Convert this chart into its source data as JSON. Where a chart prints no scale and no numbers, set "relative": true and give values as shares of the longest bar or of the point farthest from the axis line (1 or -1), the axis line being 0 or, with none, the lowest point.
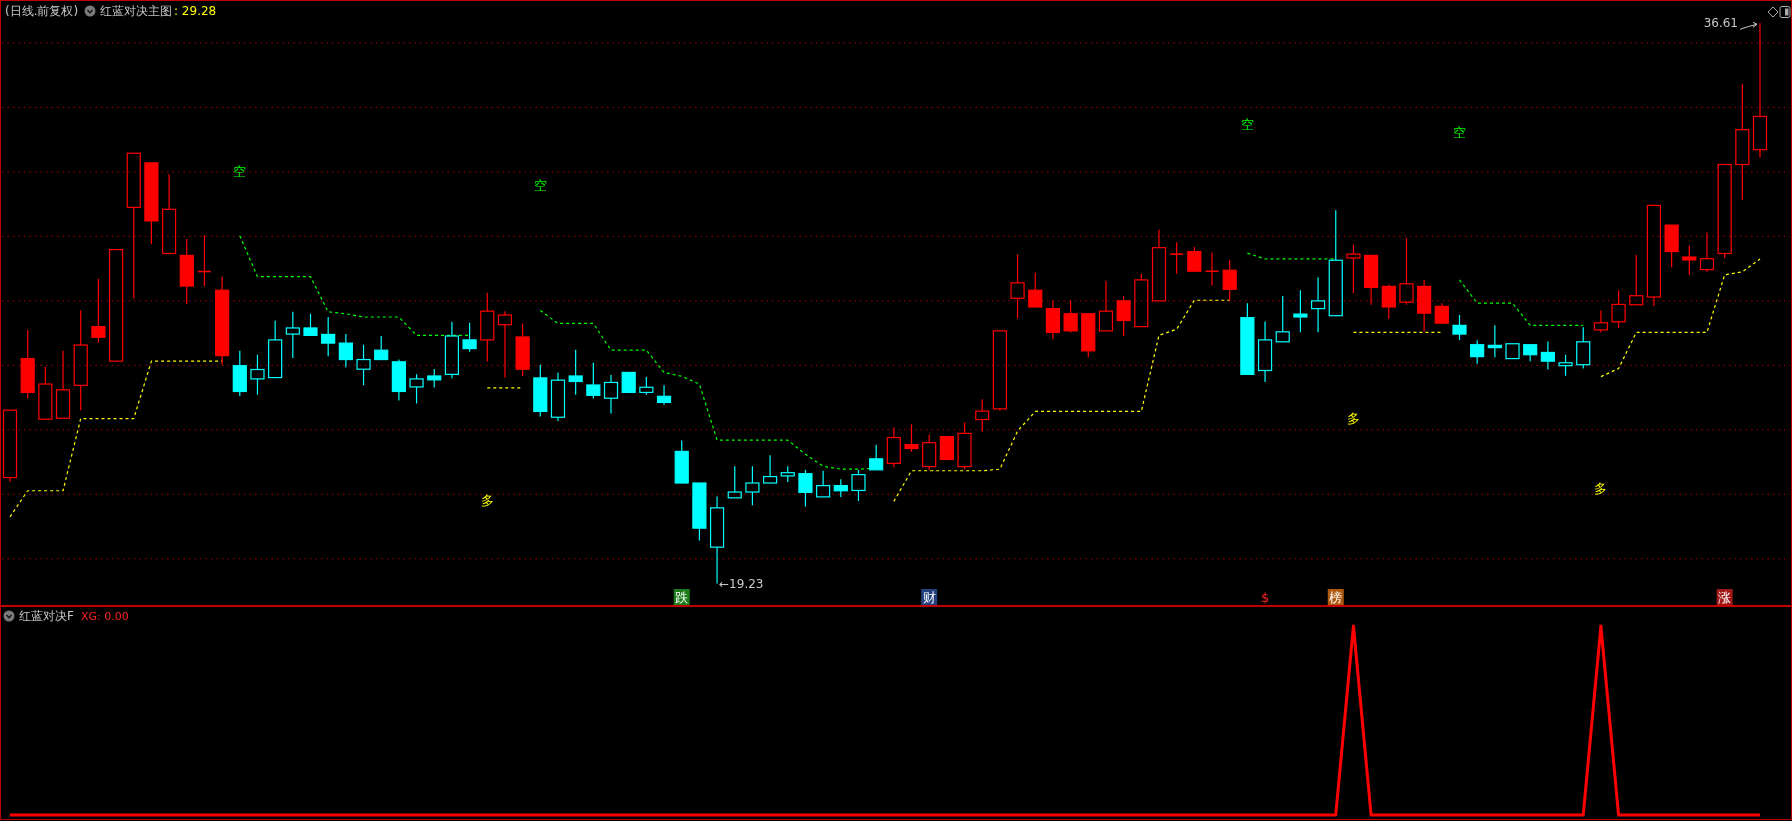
{
  "chart_data": [
    {
      "type": "candlestick",
      "title": "(日线.前复权)",
      "subtitle": "红蓝对决主图",
      "annotations": [
        ": 29.28",
        "←19.23",
        "36.61",
        "空",
        "空",
        "空",
        "空",
        "多",
        "多",
        "多",
        "跌",
        "财",
        "$",
        "榜",
        "涨"
      ],
      "categories": [
        null,
        null,
        null,
        null,
        null,
        null,
        null,
        null,
        null,
        null,
        null,
        null,
        null,
        null,
        null,
        null,
        null,
        null,
        null,
        null,
        null,
        null,
        null,
        null,
        null,
        null,
        null,
        null,
        null,
        null,
        null,
        null,
        null,
        null,
        null,
        null,
        null,
        null,
        null,
        null,
        null,
        null,
        null,
        null,
        null,
        null,
        null,
        null,
        null,
        null,
        null,
        null,
        null,
        null,
        null,
        null,
        null,
        null,
        null,
        null,
        null,
        null,
        null,
        null,
        null,
        null,
        null,
        null,
        null,
        null,
        null,
        null,
        null,
        null,
        null,
        null,
        null,
        null,
        null,
        null,
        null,
        null,
        null,
        null,
        null,
        null,
        null,
        null,
        null,
        null,
        null,
        null,
        null,
        null,
        null,
        null,
        null,
        null,
        null,
        null
      ],
      "ohlc": [
        [
          22.52,
          24.61,
          22.39,
          24.61
        ],
        [
          26.21,
          27.1,
          24.97,
          25.16
        ],
        [
          24.33,
          25.96,
          24.33,
          25.42
        ],
        [
          24.36,
          26.45,
          24.36,
          25.24
        ],
        [
          25.38,
          27.7,
          24.61,
          26.63
        ],
        [
          27.2,
          28.69,
          26.69,
          26.87
        ],
        [
          26.13,
          29.59,
          26.13,
          29.59
        ],
        [
          30.9,
          32.58,
          28.08,
          32.58
        ],
        [
          32.28,
          32.28,
          29.76,
          30.48
        ],
        [
          29.47,
          31.93,
          29.47,
          30.84
        ],
        [
          29.41,
          29.92,
          27.9,
          28.46
        ],
        [
          28.91,
          30.04,
          28.45,
          28.91
        ],
        [
          28.33,
          28.75,
          26.02,
          26.3
        ],
        [
          25.99,
          26.45,
          25.05,
          25.19
        ],
        [
          25.58,
          26.33,
          25.09,
          25.87
        ],
        [
          25.62,
          27.38,
          25.62,
          26.79
        ],
        [
          26.97,
          27.66,
          26.23,
          27.16
        ],
        [
          27.16,
          27.6,
          26.91,
          26.93
        ],
        [
          26.96,
          27.5,
          26.28,
          26.69
        ],
        [
          26.69,
          26.97,
          25.94,
          26.18
        ],
        [
          25.88,
          26.64,
          25.38,
          26.18
        ],
        [
          26.47,
          26.91,
          26.16,
          26.18
        ],
        [
          26.11,
          26.18,
          24.91,
          25.19
        ],
        [
          25.33,
          25.72,
          24.82,
          25.58
        ],
        [
          25.67,
          25.89,
          25.31,
          25.55
        ],
        [
          25.72,
          27.35,
          25.6,
          26.91
        ],
        [
          26.79,
          27.32,
          26.42,
          26.52
        ],
        [
          26.79,
          28.25,
          26.12,
          27.68
        ],
        [
          27.26,
          27.68,
          25.62,
          27.56
        ],
        [
          26.88,
          27.3,
          25.66,
          25.88
        ],
        [
          25.61,
          26.02,
          24.41,
          24.57
        ],
        [
          24.39,
          25.78,
          24.27,
          25.54
        ],
        [
          25.67,
          26.48,
          25.09,
          25.5
        ],
        [
          25.39,
          26.08,
          24.97,
          25.07
        ],
        [
          24.98,
          25.7,
          24.51,
          25.47
        ],
        [
          25.78,
          25.78,
          25.16,
          25.16
        ],
        [
          25.16,
          25.64,
          25.09,
          25.32
        ],
        [
          25.04,
          25.38,
          24.78,
          24.85
        ],
        [
          23.33,
          23.67,
          22.35,
          22.35
        ],
        [
          22.35,
          22.35,
          20.57,
          20.95
        ],
        [
          20.36,
          21.93,
          19.23,
          21.58
        ],
        [
          21.89,
          22.87,
          21.89,
          22.07
        ],
        [
          22.07,
          22.87,
          21.66,
          22.35
        ],
        [
          22.35,
          23.21,
          22.35,
          22.55
        ],
        [
          22.57,
          22.87,
          22.38,
          22.67
        ],
        [
          22.64,
          22.76,
          21.62,
          22.06
        ],
        [
          21.92,
          22.73,
          21.92,
          22.27
        ],
        [
          22.27,
          22.47,
          21.92,
          22.11
        ],
        [
          22.12,
          22.75,
          21.79,
          22.61
        ],
        [
          23.1,
          23.54,
          22.76,
          22.76
        ],
        [
          22.96,
          24.07,
          22.84,
          23.76
        ],
        [
          23.54,
          24.17,
          23.32,
          23.42
        ],
        [
          22.86,
          23.85,
          22.75,
          23.6
        ],
        [
          23.79,
          23.82,
          23.08,
          23.08
        ],
        [
          22.86,
          24.23,
          22.78,
          23.89
        ],
        [
          24.32,
          24.95,
          23.95,
          24.58
        ],
        [
          24.65,
          27.07,
          24.59,
          27.07
        ],
        [
          28.08,
          29.44,
          27.45,
          28.56
        ],
        [
          28.33,
          28.87,
          27.81,
          27.81
        ],
        [
          27.76,
          28.01,
          26.81,
          27.02
        ],
        [
          27.6,
          28.01,
          27.02,
          27.07
        ],
        [
          27.6,
          27.6,
          26.25,
          26.45
        ],
        [
          27.07,
          28.61,
          27.07,
          27.68
        ],
        [
          28.0,
          28.15,
          26.91,
          27.39
        ],
        [
          27.2,
          28.84,
          27.2,
          28.65
        ],
        [
          28.0,
          30.21,
          28.0,
          29.65
        ],
        [
          29.45,
          29.82,
          28.84,
          29.45
        ],
        [
          29.53,
          29.68,
          28.9,
          28.92
        ],
        [
          28.92,
          29.5,
          28.48,
          28.92
        ],
        [
          28.95,
          29.27,
          27.99,
          28.36
        ],
        [
          27.48,
          27.93,
          25.72,
          25.72
        ],
        [
          25.84,
          27.36,
          25.48,
          26.79
        ],
        [
          26.73,
          28.15,
          26.73,
          27.04
        ],
        [
          27.59,
          28.33,
          27.03,
          27.5
        ],
        [
          27.76,
          28.73,
          27.03,
          28.0
        ],
        [
          27.54,
          30.81,
          27.54,
          29.26
        ],
        [
          29.33,
          29.75,
          28.24,
          29.45
        ],
        [
          29.41,
          29.45,
          27.88,
          28.42
        ],
        [
          28.45,
          28.51,
          27.44,
          27.81
        ],
        [
          27.96,
          29.94,
          27.88,
          28.53
        ],
        [
          28.45,
          28.65,
          27.05,
          27.62
        ],
        [
          27.83,
          27.93,
          27.27,
          27.31
        ],
        [
          27.24,
          27.56,
          26.79,
          26.97
        ],
        [
          26.64,
          26.78,
          26.05,
          26.27
        ],
        [
          26.62,
          27.24,
          26.25,
          26.55
        ],
        [
          26.21,
          26.67,
          26.21,
          26.67
        ],
        [
          26.64,
          26.64,
          26.13,
          26.33
        ],
        [
          26.4,
          26.74,
          25.87,
          26.13
        ],
        [
          25.99,
          26.33,
          25.68,
          26.08
        ],
        [
          26.02,
          27.18,
          25.9,
          26.73
        ],
        [
          27.1,
          27.7,
          27.03,
          27.32
        ],
        [
          27.35,
          28.33,
          27.15,
          27.89
        ],
        [
          27.88,
          29.42,
          27.88,
          28.16
        ],
        [
          28.12,
          30.96,
          27.84,
          30.96
        ],
        [
          30.35,
          30.35,
          29.04,
          29.53
        ],
        [
          29.36,
          29.72,
          28.8,
          29.27
        ],
        [
          28.97,
          30.12,
          28.9,
          29.31
        ],
        [
          29.47,
          32.23,
          29.33,
          32.23
        ],
        [
          32.23,
          34.73,
          31.14,
          33.31
        ],
        [
          32.69,
          36.61,
          32.45,
          33.72
        ]
      ],
      "colors": [
        "#ff0000",
        "#ff0000",
        "#ff0000",
        "#ff0000",
        "#ff0000",
        "#ff0000",
        "#ff0000",
        "#ff0000",
        "#ff0000",
        "#ff0000",
        "#ff0000",
        "#ff0000",
        "#ff0000",
        "#00ffff",
        "#00ffff",
        "#00ffff",
        "#00ffff",
        "#00ffff",
        "#00ffff",
        "#00ffff",
        "#00ffff",
        "#00ffff",
        "#00ffff",
        "#00ffff",
        "#00ffff",
        "#00ffff",
        "#00ffff",
        "#ff0000",
        "#ff0000",
        "#ff0000",
        "#00ffff",
        "#00ffff",
        "#00ffff",
        "#00ffff",
        "#00ffff",
        "#00ffff",
        "#00ffff",
        "#00ffff",
        "#00ffff",
        "#00ffff",
        "#00ffff",
        "#00ffff",
        "#00ffff",
        "#00ffff",
        "#00ffff",
        "#00ffff",
        "#00ffff",
        "#00ffff",
        "#00ffff",
        "#00ffff",
        "#ff0000",
        "#ff0000",
        "#ff0000",
        "#ff0000",
        "#ff0000",
        "#ff0000",
        "#ff0000",
        "#ff0000",
        "#ff0000",
        "#ff0000",
        "#ff0000",
        "#ff0000",
        "#ff0000",
        "#ff0000",
        "#ff0000",
        "#ff0000",
        "#ff0000",
        "#ff0000",
        "#ff0000",
        "#ff0000",
        "#00ffff",
        "#00ffff",
        "#00ffff",
        "#00ffff",
        "#00ffff",
        "#00ffff",
        "#ff0000",
        "#ff0000",
        "#ff0000",
        "#ff0000",
        "#ff0000",
        "#ff0000",
        "#00ffff",
        "#00ffff",
        "#00ffff",
        "#00ffff",
        "#00ffff",
        "#00ffff",
        "#00ffff",
        "#00ffff",
        "#ff0000",
        "#ff0000",
        "#ff0000",
        "#ff0000",
        "#ff0000",
        "#ff0000",
        "#ff0000",
        "#ff0000",
        "#ff0000",
        "#ff0000"
      ],
      "series": [
        {
          "type": "line",
          "color": "#ffff00",
          "values": [
            21.3,
            22.11,
            22.11,
            22.11,
            24.35,
            24.35,
            24.35,
            24.35,
            26.13,
            26.13,
            26.13,
            26.13,
            26.13,
            null,
            null,
            null,
            null,
            null,
            null,
            null,
            null,
            null,
            null,
            null,
            null,
            null,
            null,
            25.3,
            25.3,
            25.3,
            null,
            null,
            null,
            null,
            null,
            null,
            null,
            null,
            null,
            null,
            null,
            null,
            null,
            null,
            null,
            null,
            null,
            null,
            null,
            null,
            21.78,
            22.73,
            22.73,
            22.73,
            22.73,
            22.73,
            22.78,
            23.96,
            24.57,
            24.57,
            24.57,
            24.57,
            24.57,
            24.57,
            24.57,
            26.93,
            27.12,
            28.02,
            28.02,
            28.02,
            null,
            null,
            null,
            null,
            null,
            null,
            27.02,
            27.02,
            27.02,
            27.02,
            27.02,
            27.02,
            null,
            null,
            null,
            null,
            null,
            null,
            null,
            null,
            25.65,
            25.9,
            27.02,
            27.02,
            27.02,
            27.02,
            27.02,
            28.81,
            28.9,
            29.3
          ]
        },
        {
          "type": "line",
          "color": "#00ff00",
          "values": [
            null,
            null,
            null,
            null,
            null,
            null,
            null,
            null,
            null,
            null,
            null,
            null,
            null,
            30.02,
            28.75,
            28.75,
            28.75,
            28.75,
            27.66,
            27.6,
            27.5,
            27.5,
            27.5,
            26.93,
            26.93,
            26.93,
            26.93,
            null,
            null,
            null,
            27.7,
            27.3,
            27.3,
            27.3,
            26.47,
            26.47,
            26.47,
            25.78,
            25.66,
            25.42,
            23.68,
            23.68,
            23.68,
            23.68,
            23.68,
            23.24,
            22.87,
            22.78,
            22.78,
            22.81,
            null,
            null,
            null,
            null,
            null,
            null,
            null,
            null,
            null,
            null,
            null,
            null,
            null,
            null,
            null,
            null,
            null,
            null,
            null,
            null,
            29.48,
            29.3,
            29.3,
            29.3,
            29.3,
            29.3,
            null,
            null,
            null,
            null,
            null,
            null,
            28.65,
            27.93,
            27.93,
            27.93,
            27.24,
            27.24,
            27.24,
            27.24,
            null,
            null,
            null,
            null,
            null,
            null,
            null,
            null,
            null,
            null
          ]
        }
      ],
      "line_style": "dashed",
      "grid": true,
      "yticks": [
        {
          "value": 20,
          "label": null
        },
        {
          "value": 22,
          "label": null
        },
        {
          "value": 24,
          "label": null
        },
        {
          "value": 26,
          "label": null
        },
        {
          "value": 28,
          "label": null
        },
        {
          "value": 30,
          "label": null
        },
        {
          "value": 32,
          "label": null
        },
        {
          "value": 34,
          "label": null
        },
        {
          "value": 36,
          "label": null
        }
      ]
    },
    {
      "type": "line",
      "title": "红蓝对决F",
      "annotations": [
        "XG: 0.00"
      ],
      "relative": true,
      "categories": [
        null,
        null,
        null,
        null,
        null,
        null,
        null,
        null,
        null,
        null,
        null,
        null,
        null,
        null,
        null,
        null,
        null,
        null,
        null,
        null,
        null,
        null,
        null,
        null,
        null,
        null,
        null,
        null,
        null,
        null,
        null,
        null,
        null,
        null,
        null,
        null,
        null,
        null,
        null,
        null,
        null,
        null,
        null,
        null,
        null,
        null,
        null,
        null,
        null,
        null,
        null,
        null,
        null,
        null,
        null,
        null,
        null,
        null,
        null,
        null,
        null,
        null,
        null,
        null,
        null,
        null,
        null,
        null,
        null,
        null,
        null,
        null,
        null,
        null,
        null,
        null,
        null,
        null,
        null,
        null,
        null,
        null,
        null,
        null,
        null,
        null,
        null,
        null,
        null,
        null,
        null,
        null,
        null,
        null,
        null,
        null,
        null,
        null,
        null,
        null
      ],
      "series": [
        {
          "color": "#ff0000",
          "values": [
            0,
            0,
            0,
            0,
            0,
            0,
            0,
            0,
            0,
            0,
            0,
            0,
            0,
            0,
            0,
            0,
            0,
            0,
            0,
            0,
            0,
            0,
            0,
            0,
            0,
            0,
            0,
            0,
            0,
            0,
            0,
            0,
            0,
            0,
            0,
            0,
            0,
            0,
            0,
            0,
            0,
            0,
            0,
            0,
            0,
            0,
            0,
            0,
            0,
            0,
            0,
            0,
            0,
            0,
            0,
            0,
            0,
            0,
            0,
            0,
            0,
            0,
            0,
            0,
            0,
            0,
            0,
            0,
            0,
            0,
            0,
            0,
            0,
            0,
            0,
            0,
            1,
            0,
            0,
            0,
            0,
            0,
            0,
            0,
            0,
            0,
            0,
            0,
            0,
            0,
            1,
            0,
            0,
            0,
            0,
            0,
            0,
            0,
            0,
            0
          ]
        }
      ]
    }
  ]
}
